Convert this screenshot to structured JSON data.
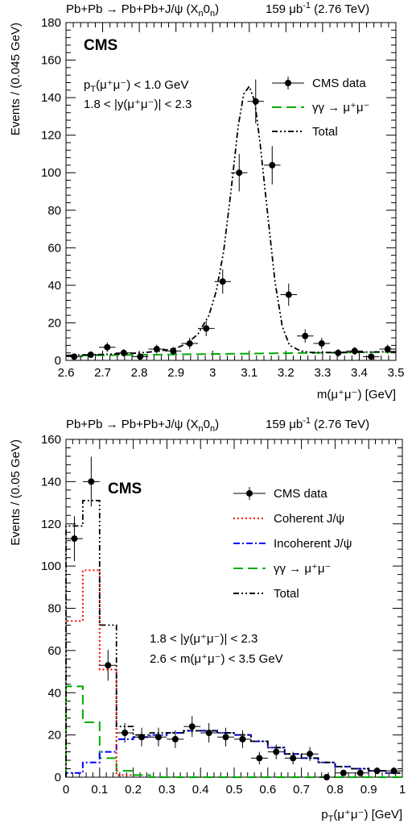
{
  "chart_data": [
    {
      "type": "scatter",
      "process": "Pb+Pb → Pb+Pb+J/ψ (X",
      "process_sub1": "n",
      "process_mid": "0",
      "process_sub2": "n",
      "process_end": ")",
      "lumi": "159 μb",
      "lumi_sup": "-1",
      "lumi_end": " (2.76 TeV)",
      "cms_label": "CMS",
      "cut_line1": "p",
      "cut_line1_sub": "T",
      "cut_line1_rest": "(μ⁺μ⁻) < 1.0 GeV",
      "cut_line2": "1.8 < |y(μ⁺μ⁻)| < 2.3",
      "ylabel": "Events / (0.045 GeV)",
      "xlabel": "m(μ⁺μ⁻) [GeV]",
      "xlim": [
        2.6,
        3.5
      ],
      "ylim": [
        0,
        180
      ],
      "xticks": [
        "2.6",
        "2.7",
        "2.8",
        "2.9",
        "3",
        "3.1",
        "3.2",
        "3.3",
        "3.4",
        "3.5"
      ],
      "yticks": [
        "0",
        "20",
        "40",
        "60",
        "80",
        "100",
        "120",
        "140",
        "160",
        "180"
      ],
      "legend_placement": "top-right",
      "legend": [
        {
          "label": "CMS data",
          "style": "points",
          "color": "#000000"
        },
        {
          "label": "γγ → μ⁺μ⁻",
          "style": "dashed",
          "color": "#00aa00"
        },
        {
          "label": "Total",
          "style": "dashdotdot",
          "color": "#000000"
        }
      ],
      "data_points": {
        "x": [
          2.6225,
          2.6675,
          2.7125,
          2.7575,
          2.8025,
          2.8475,
          2.8925,
          2.9375,
          2.9825,
          3.0275,
          3.0725,
          3.1175,
          3.1625,
          3.2075,
          3.2525,
          3.2975,
          3.3425,
          3.3875,
          3.4325,
          3.4775
        ],
        "y": [
          2,
          3,
          7,
          4,
          2,
          6,
          5,
          9,
          17,
          42,
          100,
          138,
          104,
          35,
          13,
          9,
          4,
          5,
          2,
          6
        ],
        "yerr": [
          1.4,
          1.7,
          2.6,
          2.0,
          1.4,
          2.4,
          2.2,
          3.0,
          4.1,
          6.5,
          10.0,
          11.7,
          10.2,
          5.9,
          3.6,
          3.0,
          2.0,
          2.2,
          1.4,
          2.4
        ],
        "xerr": 0.0225
      },
      "series": [
        {
          "name": "γγ → μ⁺μ⁻",
          "color": "#00aa00",
          "x": [
            2.6,
            3.5
          ],
          "y": [
            2.5,
            4.5
          ]
        },
        {
          "name": "Total",
          "color": "#000000",
          "x": [
            2.6,
            2.65,
            2.7,
            2.75,
            2.8,
            2.85,
            2.9,
            2.93,
            2.96,
            2.99,
            3.01,
            3.03,
            3.05,
            3.07,
            3.085,
            3.1,
            3.115,
            3.13,
            3.15,
            3.17,
            3.19,
            3.21,
            3.24,
            3.27,
            3.3,
            3.35,
            3.4,
            3.45,
            3.5
          ],
          "y": [
            2.6,
            2.9,
            3.2,
            3.5,
            4.0,
            4.8,
            6.5,
            9,
            14,
            24,
            37,
            58,
            90,
            125,
            142,
            146,
            138,
            115,
            78,
            42,
            18,
            8,
            5,
            4.2,
            4.2,
            4.3,
            4.4,
            4.5,
            4.6
          ]
        }
      ]
    },
    {
      "type": "histogram",
      "process": "Pb+Pb → Pb+Pb+J/ψ (X",
      "process_sub1": "n",
      "process_mid": "0",
      "process_sub2": "n",
      "process_end": ")",
      "lumi": "159 μb",
      "lumi_sup": "-1",
      "lumi_end": " (2.76 TeV)",
      "cms_label": "CMS",
      "cut_line1": "1.8 < |y(μ⁺μ⁻)| < 2.3",
      "cut_line2": "2.6 < m(μ⁺μ⁻) < 3.5 GeV",
      "ylabel": "Events / (0.05 GeV)",
      "xlabel": "p",
      "xlabel_sub": "T",
      "xlabel_rest": "(μ⁺μ⁻) [GeV]",
      "xlim": [
        0,
        1
      ],
      "ylim": [
        0,
        160
      ],
      "xticks": [
        "0",
        "0.1",
        "0.2",
        "0.3",
        "0.4",
        "0.5",
        "0.6",
        "0.7",
        "0.8",
        "0.9",
        "1"
      ],
      "yticks": [
        "0",
        "20",
        "40",
        "60",
        "80",
        "100",
        "120",
        "140",
        "160"
      ],
      "legend_placement": "top-right",
      "legend": [
        {
          "label": "CMS data",
          "style": "points",
          "color": "#000000"
        },
        {
          "label": "Coherent J/ψ",
          "style": "dotted",
          "color": "#ff0000"
        },
        {
          "label": "Incoherent J/ψ",
          "style": "dashdot",
          "color": "#0000ff"
        },
        {
          "label": "γγ → μ⁺μ⁻",
          "style": "dashed",
          "color": "#00aa00"
        },
        {
          "label": "Total",
          "style": "dashdotdot",
          "color": "#000000"
        }
      ],
      "data_points": {
        "x": [
          0.025,
          0.075,
          0.125,
          0.175,
          0.225,
          0.275,
          0.325,
          0.375,
          0.425,
          0.475,
          0.525,
          0.575,
          0.625,
          0.675,
          0.725,
          0.775,
          0.825,
          0.875,
          0.925,
          0.975
        ],
        "y": [
          113,
          140,
          53,
          21,
          19,
          19,
          18,
          24,
          21,
          19,
          18,
          9,
          12,
          9,
          11,
          0,
          2,
          2,
          3,
          3
        ],
        "yerr": [
          10.6,
          11.8,
          7.3,
          4.6,
          4.4,
          4.4,
          4.2,
          4.9,
          4.6,
          4.4,
          4.2,
          3.0,
          3.5,
          3.0,
          3.3,
          0,
          1.4,
          1.4,
          1.7,
          1.7
        ],
        "xerr": 0.025
      },
      "series": [
        {
          "name": "Coherent J/ψ",
          "color": "#ff0000",
          "bin_edges": [
            0,
            0.05,
            0.1,
            0.15,
            0.2
          ],
          "values": [
            74,
            98,
            51,
            1
          ]
        },
        {
          "name": "Incoherent J/ψ",
          "color": "#0000ff",
          "bin_edges": [
            0,
            0.05,
            0.1,
            0.15,
            0.2,
            0.25,
            0.3,
            0.35,
            0.4,
            0.45,
            0.5,
            0.55,
            0.6,
            0.65,
            0.7,
            0.75,
            0.8,
            0.85,
            0.9,
            0.95,
            1.0
          ],
          "values": [
            2,
            7,
            12,
            18,
            19,
            20,
            21,
            22,
            22,
            21,
            20,
            17,
            14,
            11,
            9,
            7,
            5,
            4,
            3,
            2
          ]
        },
        {
          "name": "γγ → μ⁺μ⁻",
          "color": "#00aa00",
          "bin_edges": [
            0,
            0.05,
            0.1,
            0.15,
            0.2,
            0.25,
            1.0
          ],
          "values": [
            43,
            26,
            9,
            3,
            1,
            0
          ]
        },
        {
          "name": "Total",
          "color": "#000000",
          "bin_edges": [
            0,
            0.05,
            0.1,
            0.15,
            0.2,
            0.25,
            0.3,
            0.35,
            0.4,
            0.45,
            0.5,
            0.55,
            0.6,
            0.65,
            0.7,
            0.75,
            0.8,
            0.85,
            0.9,
            0.95,
            1.0
          ],
          "values": [
            119,
            131,
            72,
            24,
            20,
            21,
            21,
            22,
            22,
            21,
            20,
            17,
            14,
            11,
            9,
            7,
            5,
            4,
            3,
            2
          ]
        }
      ]
    }
  ]
}
